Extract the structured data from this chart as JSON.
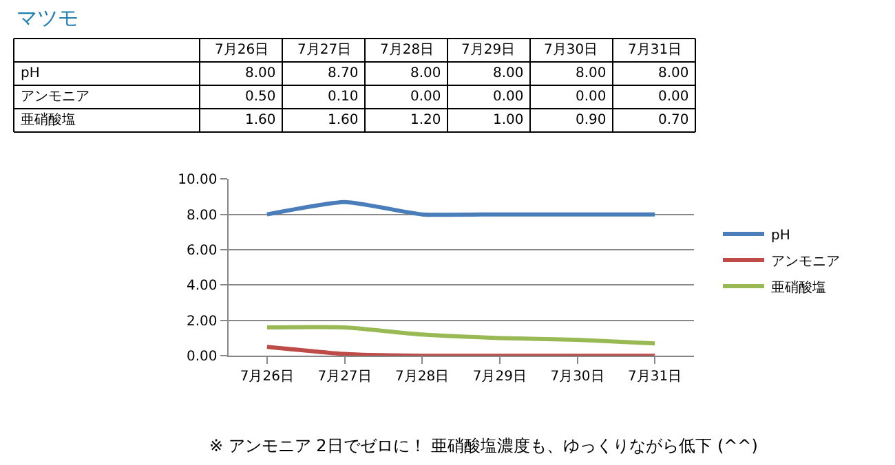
{
  "chart_data": {
    "type": "line",
    "title": "マツモ",
    "categories": [
      "7月26日",
      "7月27日",
      "7月28日",
      "7月29日",
      "7月30日",
      "7月31日"
    ],
    "series": [
      {
        "name": "pH",
        "color": "#4a7ebb",
        "values": [
          8.0,
          8.7,
          8.0,
          8.0,
          8.0,
          8.0
        ],
        "value_labels": [
          "8.00",
          "8.70",
          "8.00",
          "8.00",
          "8.00",
          "8.00"
        ]
      },
      {
        "name": "アンモニア",
        "color": "#be4b48",
        "values": [
          0.5,
          0.1,
          0.0,
          0.0,
          0.0,
          0.0
        ],
        "value_labels": [
          "0.50",
          "0.10",
          "0.00",
          "0.00",
          "0.00",
          "0.00"
        ]
      },
      {
        "name": "亜硝酸塩",
        "color": "#98b954",
        "values": [
          1.6,
          1.6,
          1.2,
          1.0,
          0.9,
          0.7
        ],
        "value_labels": [
          "1.60",
          "1.60",
          "1.20",
          "1.00",
          "0.90",
          "0.70"
        ]
      }
    ],
    "ylim": [
      0,
      10
    ],
    "yticks": [
      {
        "value": 0,
        "label": "0.00"
      },
      {
        "value": 2,
        "label": "2.00"
      },
      {
        "value": 4,
        "label": "4.00"
      },
      {
        "value": 6,
        "label": "6.00"
      },
      {
        "value": 8,
        "label": "8.00"
      },
      {
        "value": 10,
        "label": "10.00"
      }
    ],
    "grid": "y",
    "legend": "right",
    "marker": "none",
    "line_style": "solid",
    "annotations": [
      "※ アンモニア 2日でゼロに！ 亜硝酸塩濃度も、ゆっくりながら低下 (^^)"
    ]
  }
}
